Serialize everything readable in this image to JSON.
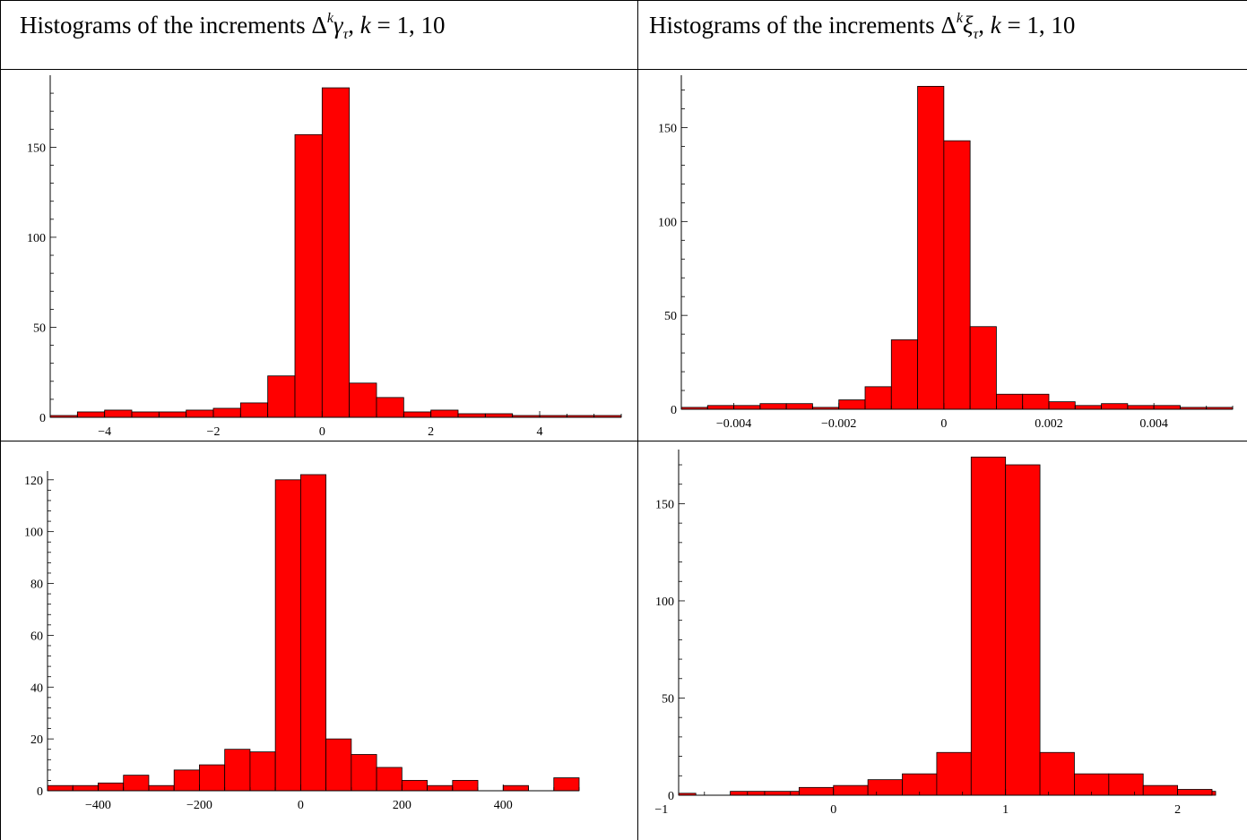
{
  "headers": {
    "left": {
      "prefix": "Histograms of the increments",
      "delta": "Δ",
      "sup": "k",
      "symbol": "γ",
      "sub": "τ",
      "suffix_k": "k",
      "suffix_rest": " = 1, 10"
    },
    "right": {
      "prefix": "Histograms of the increments",
      "delta": "Δ",
      "sup": "k",
      "symbol": "ξ",
      "sub": "τ",
      "suffix_k": "k",
      "suffix_rest": " = 1, 10"
    }
  },
  "bar_color": "#ff0000",
  "chart_data": [
    {
      "type": "bar",
      "id": "gamma-k1",
      "bins_start": -5.0,
      "bin_width": 0.5,
      "values": [
        1,
        3,
        4,
        3,
        3,
        4,
        5,
        8,
        23,
        157,
        183,
        19,
        11,
        3,
        4,
        2,
        2,
        1,
        1,
        1,
        1
      ],
      "xlim": [
        -5.0,
        5.5
      ],
      "ylim": [
        0,
        188
      ],
      "xticks": [
        -4,
        -2,
        0,
        2,
        4
      ],
      "xtick_labels": [
        "−4",
        "−2",
        "0",
        "2",
        "4"
      ],
      "yticks": [
        0,
        50,
        100,
        150
      ],
      "ytick_labels": [
        "0",
        "50",
        "100",
        "150"
      ]
    },
    {
      "type": "bar",
      "id": "xi-k1",
      "bins_start": -0.005,
      "bin_width": 0.0005,
      "values": [
        1,
        2,
        2,
        3,
        3,
        1,
        5,
        12,
        37,
        172,
        143,
        44,
        8,
        8,
        4,
        2,
        3,
        2,
        2,
        1,
        1
      ],
      "xlim": [
        -0.005,
        0.0055
      ],
      "ylim": [
        0,
        176
      ],
      "xticks": [
        -0.004,
        -0.002,
        0,
        0.002,
        0.004
      ],
      "xtick_labels": [
        "−0.004",
        "−0.002",
        "0",
        "0.002",
        "0.004"
      ],
      "yticks": [
        0,
        50,
        100,
        150
      ],
      "ytick_labels": [
        "0",
        "50",
        "100",
        "150"
      ]
    },
    {
      "type": "bar",
      "id": "gamma-k10",
      "bins_start": -500,
      "bin_width": 50,
      "values": [
        2,
        2,
        3,
        6,
        2,
        8,
        10,
        16,
        15,
        120,
        122,
        20,
        14,
        9,
        4,
        2,
        4,
        0,
        2,
        0,
        5
      ],
      "xlim": [
        -500,
        550
      ],
      "ylim": [
        0,
        122
      ],
      "xticks": [
        -400,
        -200,
        0,
        200,
        400
      ],
      "xtick_labels": [
        "−400",
        "−200",
        "0",
        "200",
        "400"
      ],
      "yticks": [
        0,
        20,
        40,
        60,
        80,
        100,
        120
      ],
      "ytick_labels": [
        "0",
        "20",
        "40",
        "60",
        "80",
        "100",
        "120"
      ]
    },
    {
      "type": "bar",
      "id": "xi-k10",
      "bins_start": -1.0,
      "bin_width": 0.2,
      "values": [
        1,
        0,
        2,
        2,
        4,
        5,
        8,
        11,
        22,
        174,
        170,
        22,
        11,
        11,
        5,
        3,
        2,
        1,
        1,
        0,
        3
      ],
      "xlim": [
        -0.9,
        2.2
      ],
      "ylim": [
        0,
        176
      ],
      "xticks": [
        -1,
        0,
        1,
        2
      ],
      "xtick_labels": [
        "−1",
        "0",
        "1",
        "2"
      ],
      "yticks": [
        0,
        50,
        100,
        150
      ],
      "ytick_labels": [
        "0",
        "50",
        "100",
        "150"
      ]
    }
  ]
}
